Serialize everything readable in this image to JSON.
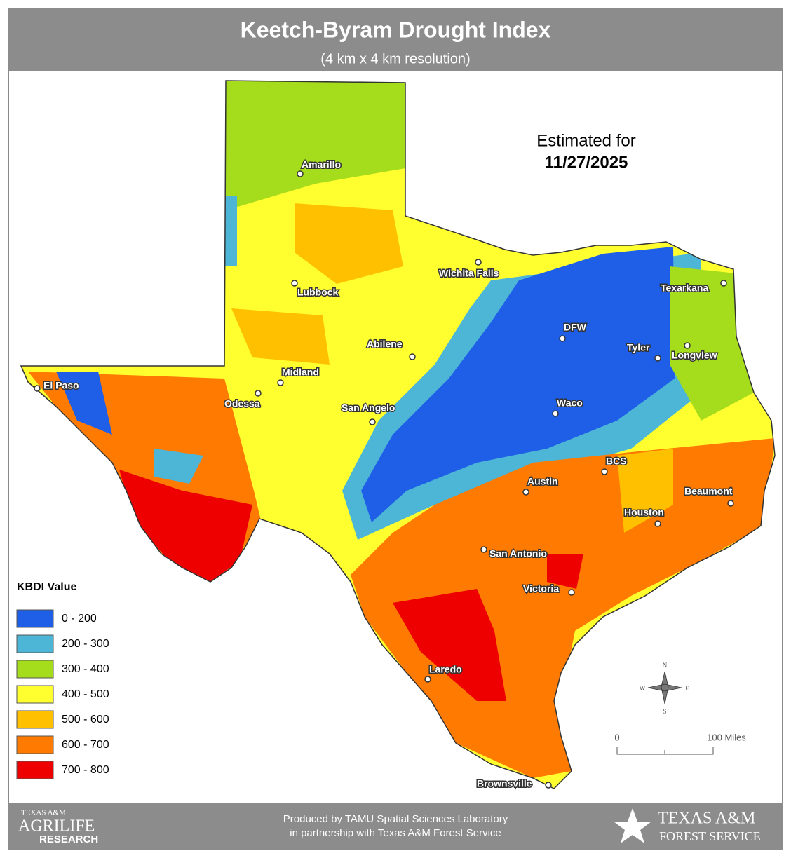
{
  "header": {
    "title": "Keetch-Byram Drought Index",
    "subtitle": "(4 km x 4 km resolution)"
  },
  "estimate": {
    "label": "Estimated for",
    "date": "11/27/2025"
  },
  "cities": [
    "Amarillo",
    "Wichita Falls",
    "Lubbock",
    "Texarkana",
    "DFW",
    "Abilene",
    "Tyler",
    "Longview",
    "Midland",
    "El Paso",
    "Odessa",
    "San Angelo",
    "Waco",
    "BCS",
    "Austin",
    "Beaumont",
    "Houston",
    "San Antonio",
    "Victoria",
    "Laredo",
    "Brownsville"
  ],
  "legend": {
    "title": "KBDI Value",
    "items": [
      {
        "label": "0 - 200",
        "color": "#1f5fe8"
      },
      {
        "label": "200 - 300",
        "color": "#4db6d6"
      },
      {
        "label": "300 - 400",
        "color": "#a5dc1c"
      },
      {
        "label": "400 - 500",
        "color": "#ffff30"
      },
      {
        "label": "500 - 600",
        "color": "#ffc000"
      },
      {
        "label": "600 - 700",
        "color": "#ff7a00"
      },
      {
        "label": "700 - 800",
        "color": "#ee0000"
      }
    ]
  },
  "compass": {
    "n": "N",
    "s": "S",
    "e": "E",
    "w": "W"
  },
  "scale": {
    "start": "0",
    "end": "100 Miles"
  },
  "footer": {
    "line1": "Produced by TAMU Spatial Sciences Laboratory",
    "line2": "in partnership with Texas A&M Forest Service",
    "left_logo": {
      "top": "TEXAS A&M",
      "middle": "AGRILIFE",
      "bottom": "RESEARCH"
    },
    "right_logo": {
      "top": "TEXAS A&M",
      "bottom": "FOREST SERVICE"
    }
  }
}
